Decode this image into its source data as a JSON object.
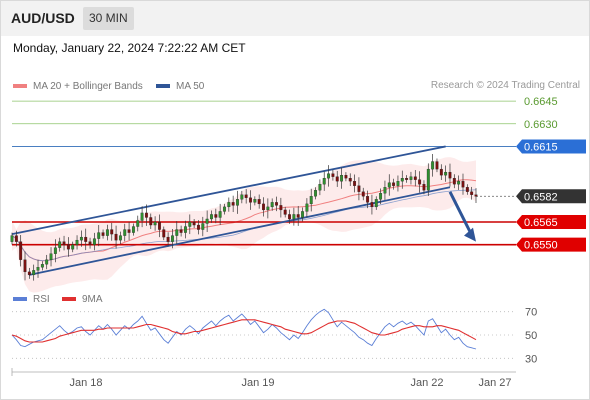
{
  "header": {
    "pair": "AUD/USD",
    "timeframe": "30 MIN",
    "datetime": "Monday, January 22, 2024 7:22:22 AM CET",
    "credit": "Research © 2024 Trading Central"
  },
  "colors": {
    "ma20": "#f08080",
    "ma50": "#2f5597",
    "resistance": "#8cc36b",
    "level_blue": "#4a7fc1",
    "support": "#cc0000",
    "current": "#333333",
    "rsi": "#5b7fd6",
    "rsi_ma": "#e03030"
  },
  "chart_data": [
    {
      "type": "candlestick",
      "title": "",
      "legend": [
        {
          "name": "MA 20 + Bollinger Bands",
          "color": "#f08080"
        },
        {
          "name": "MA 50",
          "color": "#2f5597"
        }
      ],
      "x_ticks": [
        "Jan 18",
        "Jan 19",
        "Jan 22",
        "Jan 27"
      ],
      "ylim": [
        0.652,
        0.6655
      ],
      "levels": [
        {
          "value": 0.6645,
          "label": "0.6645",
          "kind": "resistance"
        },
        {
          "value": 0.663,
          "label": "0.6630",
          "kind": "resistance"
        },
        {
          "value": 0.6615,
          "label": "0.6615",
          "kind": "pivot"
        },
        {
          "value": 0.6582,
          "label": "0.6582",
          "kind": "current"
        },
        {
          "value": 0.6565,
          "label": "0.6565",
          "kind": "support"
        },
        {
          "value": 0.655,
          "label": "0.6550",
          "kind": "support"
        }
      ],
      "channel": {
        "upper": [
          [
            0,
            0.6557
          ],
          [
            100,
            0.6615
          ]
        ],
        "lower": [
          [
            4,
            0.653
          ],
          [
            101,
            0.6588
          ]
        ]
      },
      "forecast_arrow": [
        [
          101,
          0.6585
        ],
        [
          107,
          0.6552
        ]
      ],
      "close": [
        0.6556,
        0.6552,
        0.654,
        0.6532,
        0.653,
        0.6533,
        0.6535,
        0.6537,
        0.654,
        0.6544,
        0.6548,
        0.6552,
        0.655,
        0.6547,
        0.655,
        0.6553,
        0.6555,
        0.6552,
        0.655,
        0.6554,
        0.6558,
        0.6556,
        0.656,
        0.6557,
        0.6553,
        0.6556,
        0.656,
        0.6558,
        0.6562,
        0.6566,
        0.6571,
        0.6568,
        0.6563,
        0.6565,
        0.656,
        0.6555,
        0.6552,
        0.6556,
        0.656,
        0.6558,
        0.6562,
        0.6565,
        0.6563,
        0.656,
        0.6564,
        0.6567,
        0.657,
        0.6568,
        0.6572,
        0.6575,
        0.6578,
        0.6576,
        0.658,
        0.6583,
        0.6581,
        0.6578,
        0.658,
        0.6577,
        0.6573,
        0.6575,
        0.6578,
        0.6576,
        0.6573,
        0.657,
        0.6567,
        0.657,
        0.6568,
        0.6572,
        0.6577,
        0.6582,
        0.6586,
        0.659,
        0.6594,
        0.6597,
        0.6595,
        0.6592,
        0.6596,
        0.6594,
        0.6592,
        0.6589,
        0.6585,
        0.6582,
        0.6578,
        0.6575,
        0.658,
        0.6584,
        0.6588,
        0.6591,
        0.6589,
        0.6592,
        0.6594,
        0.6593,
        0.6595,
        0.6593,
        0.659,
        0.6586,
        0.66,
        0.6605,
        0.66,
        0.6596,
        0.6598,
        0.6594,
        0.659,
        0.6592,
        0.6588,
        0.6585,
        0.6583,
        0.6582
      ]
    },
    {
      "type": "line",
      "title": "",
      "legend": [
        {
          "name": "RSI",
          "color": "#5b7fd6"
        },
        {
          "name": "9MA",
          "color": "#e03030"
        }
      ],
      "y_ticks": [
        70,
        50,
        30
      ],
      "ylim": [
        20,
        80
      ],
      "series": [
        {
          "name": "RSI",
          "values": [
            50,
            46,
            41,
            40,
            42,
            44,
            45,
            46,
            49,
            52,
            55,
            58,
            54,
            51,
            53,
            56,
            57,
            53,
            50,
            54,
            58,
            55,
            59,
            55,
            50,
            54,
            58,
            55,
            59,
            62,
            66,
            60,
            54,
            56,
            51,
            46,
            43,
            48,
            53,
            50,
            55,
            58,
            55,
            51,
            56,
            59,
            62,
            58,
            62,
            65,
            67,
            62,
            65,
            68,
            64,
            59,
            62,
            57,
            52,
            55,
            59,
            56,
            52,
            49,
            46,
            50,
            47,
            52,
            58,
            63,
            67,
            70,
            72,
            69,
            63,
            57,
            61,
            58,
            55,
            52,
            48,
            46,
            43,
            41,
            47,
            52,
            57,
            60,
            57,
            60,
            62,
            59,
            61,
            58,
            54,
            50,
            62,
            64,
            58,
            52,
            55,
            50,
            46,
            48,
            43,
            40,
            39,
            38
          ]
        },
        {
          "name": "9MA",
          "values": [
            50,
            49,
            47,
            45,
            44,
            44,
            44,
            44,
            45,
            46,
            47,
            49,
            50,
            51,
            52,
            53,
            54,
            54,
            54,
            54,
            55,
            55,
            56,
            56,
            56,
            56,
            56,
            56,
            56,
            57,
            58,
            59,
            59,
            58,
            57,
            56,
            55,
            53,
            52,
            51,
            51,
            52,
            53,
            53,
            54,
            55,
            56,
            57,
            58,
            59,
            60,
            61,
            62,
            63,
            63,
            63,
            63,
            62,
            61,
            60,
            59,
            58,
            57,
            55,
            54,
            53,
            52,
            51,
            51,
            52,
            54,
            56,
            58,
            60,
            61,
            62,
            62,
            62,
            61,
            60,
            58,
            56,
            54,
            52,
            51,
            50,
            50,
            51,
            52,
            53,
            55,
            56,
            57,
            58,
            58,
            57,
            57,
            57,
            58,
            58,
            57,
            56,
            55,
            54,
            52,
            50,
            48,
            46
          ]
        }
      ]
    }
  ]
}
